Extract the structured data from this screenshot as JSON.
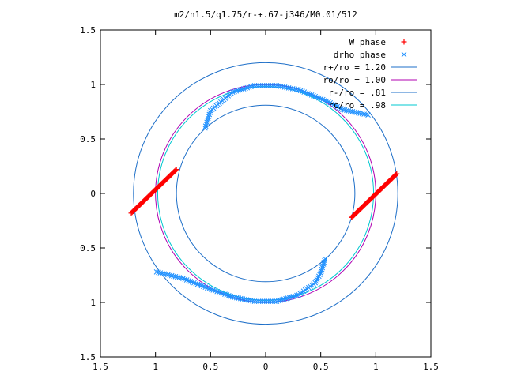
{
  "chart_data": {
    "type": "scatter",
    "title": "m2/n1.5/q1.75/r-+.67-j346/M0.01/512",
    "xlabel": "",
    "ylabel": "",
    "xlim": [
      -1.5,
      1.5
    ],
    "ylim": [
      -1.5,
      1.5
    ],
    "x_ticks": [
      -1.5,
      -1,
      -0.5,
      0,
      0.5,
      1,
      1.5
    ],
    "y_ticks": [
      -1.5,
      -1,
      -0.5,
      0,
      0.5,
      1,
      1.5
    ],
    "x_tick_labels": [
      "1.5",
      "1",
      "0.5",
      "0",
      "0.5",
      "1",
      "1.5"
    ],
    "y_tick_labels": [
      "1.5",
      "1",
      "0.5",
      "0",
      "0.5",
      "1",
      "1.5"
    ],
    "grid": false,
    "legend_position": "top-right",
    "series": [
      {
        "name": "W phase",
        "marker": "plus",
        "color": "#ff0000",
        "segments": [
          {
            "from": [
              -1.22,
              -0.18
            ],
            "to": [
              -0.81,
              0.22
            ]
          },
          {
            "from": [
              0.78,
              -0.22
            ],
            "to": [
              1.19,
              0.18
            ]
          }
        ]
      },
      {
        "name": "drho phase",
        "marker": "x",
        "color": "#1e90ff",
        "segments": [
          {
            "path": [
              [
                -0.55,
                0.6
              ],
              [
                -0.5,
                0.76
              ],
              [
                -0.3,
                0.93
              ],
              [
                -0.1,
                0.99
              ],
              [
                0.1,
                0.99
              ],
              [
                0.3,
                0.95
              ],
              [
                0.45,
                0.89
              ],
              [
                0.57,
                0.84
              ],
              [
                0.7,
                0.77
              ],
              [
                0.93,
                0.72
              ]
            ]
          },
          {
            "path": [
              [
                -0.99,
                -0.72
              ],
              [
                -0.75,
                -0.78
              ],
              [
                -0.6,
                -0.84
              ],
              [
                -0.44,
                -0.9
              ],
              [
                -0.3,
                -0.95
              ],
              [
                -0.1,
                -0.99
              ],
              [
                0.1,
                -0.99
              ],
              [
                0.3,
                -0.93
              ],
              [
                0.45,
                -0.82
              ],
              [
                0.5,
                -0.73
              ],
              [
                0.54,
                -0.6
              ]
            ]
          }
        ]
      },
      {
        "name": "r+/ro = 1.20",
        "type": "circle",
        "radius": 1.2,
        "color": "#1e6fc8"
      },
      {
        "name": "ro/ro = 1.00",
        "type": "circle",
        "radius": 1.0,
        "color": "#b000b0"
      },
      {
        "name": "r-/ro = .81",
        "type": "circle",
        "radius": 0.81,
        "color": "#1e6fc8"
      },
      {
        "name": "rc/ro = .98",
        "type": "circle",
        "radius": 0.98,
        "color": "#00c8d0"
      }
    ]
  }
}
